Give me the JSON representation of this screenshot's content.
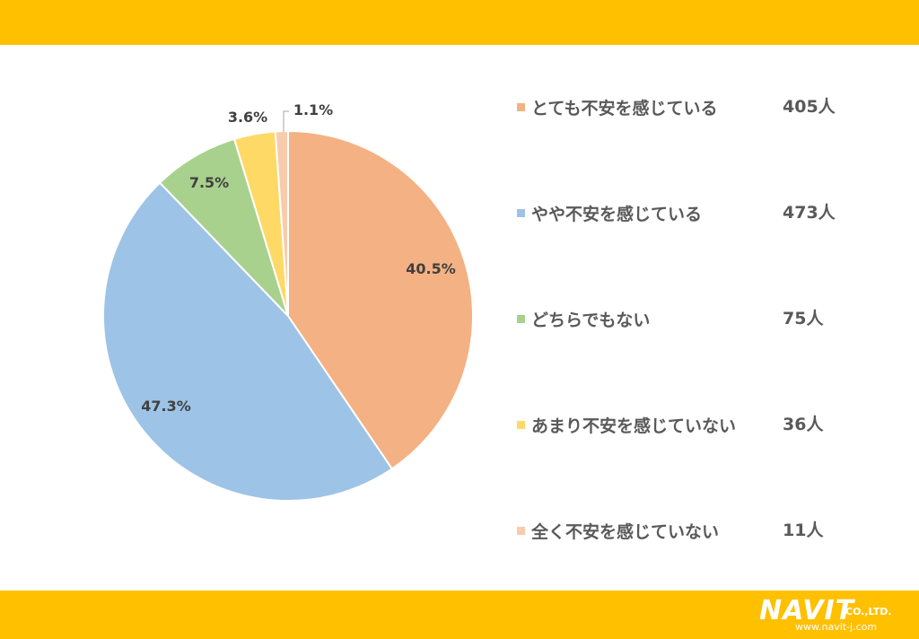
{
  "chart_data": {
    "type": "pie",
    "title": "",
    "categories": [
      "とても不安を感じている",
      "やや不安を感じている",
      "どちらでもない",
      "あまり不安を感じていない",
      "全く不安を感じていない"
    ],
    "values": [
      40.5,
      47.3,
      7.5,
      3.6,
      1.1
    ],
    "value_labels": [
      "40.5%",
      "47.3%",
      "7.5%",
      "3.6%",
      "1.1%"
    ],
    "counts": [
      "405人",
      "473人",
      "75人",
      "36人",
      "11人"
    ],
    "colors": [
      "#f4b183",
      "#9dc3e6",
      "#a9d18e",
      "#ffd966",
      "#f8cbad"
    ],
    "legend_position": "right",
    "start_angle": "12 o'clock, clockwise"
  },
  "theme": {
    "band_color": "#ffc000"
  },
  "logo": {
    "word": "NAVIT",
    "suffix": "CO.,LTD.",
    "url": "www.navit-j.com"
  }
}
